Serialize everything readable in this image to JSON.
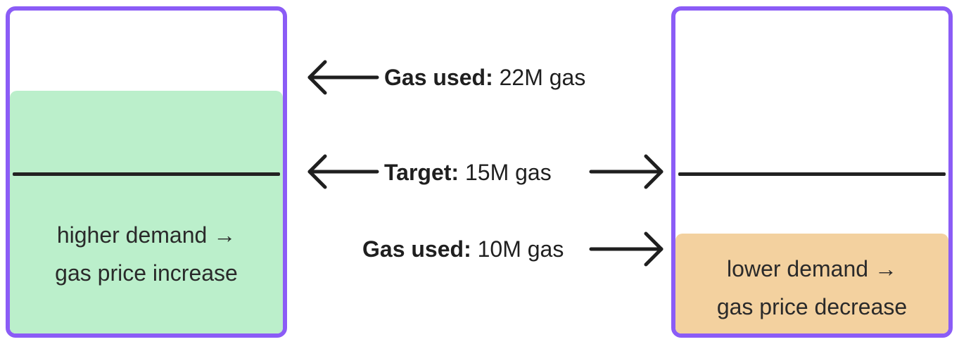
{
  "colors": {
    "block_border": "#8b5cf6",
    "high_demand_fill": "#bbefcb",
    "low_demand_fill": "#f3d19f",
    "ink": "#1f1f1f"
  },
  "left_block": {
    "demand_text": "higher demand →\ngas price increase"
  },
  "right_block": {
    "demand_text": "lower demand →\ngas price decrease"
  },
  "labels": {
    "gas_used_high": {
      "key": "Gas used:",
      "value": " 22M gas"
    },
    "target": {
      "key": "Target:",
      "value": " 15M gas"
    },
    "gas_used_low": {
      "key": "Gas used:",
      "value": " 10M gas"
    }
  },
  "icons": {
    "arrow_gas_used_high": "arrow-left-icon",
    "arrow_target_left": "arrow-left-icon",
    "arrow_target_right": "arrow-right-icon",
    "arrow_gas_used_low": "arrow-right-icon"
  }
}
